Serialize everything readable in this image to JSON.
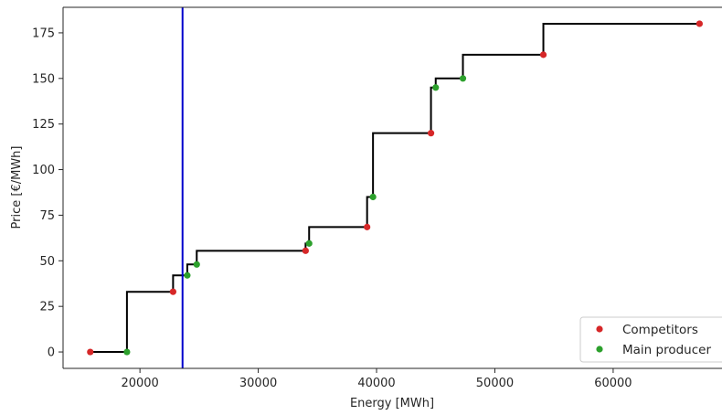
{
  "chart_data": {
    "type": "scatter",
    "title": "",
    "xlabel": "Energy [MWh]",
    "ylabel": "Price [€/MWh]",
    "xlim": [
      13500,
      69200
    ],
    "ylim": [
      -9,
      189
    ],
    "xticks": [
      20000,
      30000,
      40000,
      50000,
      60000
    ],
    "xtick_labels": [
      "20000",
      "30000",
      "40000",
      "50000",
      "60000"
    ],
    "yticks": [
      0,
      25,
      50,
      75,
      100,
      125,
      150,
      175
    ],
    "ytick_labels": [
      "0",
      "25",
      "50",
      "75",
      "100",
      "125",
      "150",
      "175"
    ],
    "grid": false,
    "legend_position": "bottom-right",
    "supply_curve": {
      "x": [
        15800,
        18900,
        18900,
        22800,
        22800,
        24000,
        24000,
        24800,
        24800,
        34000,
        34000,
        34300,
        34300,
        39200,
        39200,
        39700,
        39700,
        44600,
        44600,
        45000,
        45000,
        47300,
        47300,
        54100,
        54100,
        67300
      ],
      "y": [
        0,
        0,
        33,
        33,
        42,
        42,
        48,
        48,
        55.5,
        55.5,
        59.5,
        59.5,
        68.5,
        68.5,
        85,
        85,
        120,
        120,
        145,
        145,
        150,
        150,
        163,
        163,
        180,
        180
      ],
      "color": "#000000"
    },
    "vertical_line": {
      "x": 23600,
      "color": "#0000cc"
    },
    "series": [
      {
        "name": "Competitors",
        "color": "#d62728",
        "x": [
          15800,
          22800,
          34000,
          39200,
          44600,
          54100,
          67300
        ],
        "y": [
          0,
          33,
          55.5,
          68.5,
          120,
          163,
          180
        ]
      },
      {
        "name": "Main producer",
        "color": "#2ca02c",
        "x": [
          18900,
          24000,
          24800,
          34300,
          39700,
          45000,
          47300
        ],
        "y": [
          0,
          42,
          48,
          59.5,
          85,
          145,
          150
        ]
      }
    ]
  }
}
